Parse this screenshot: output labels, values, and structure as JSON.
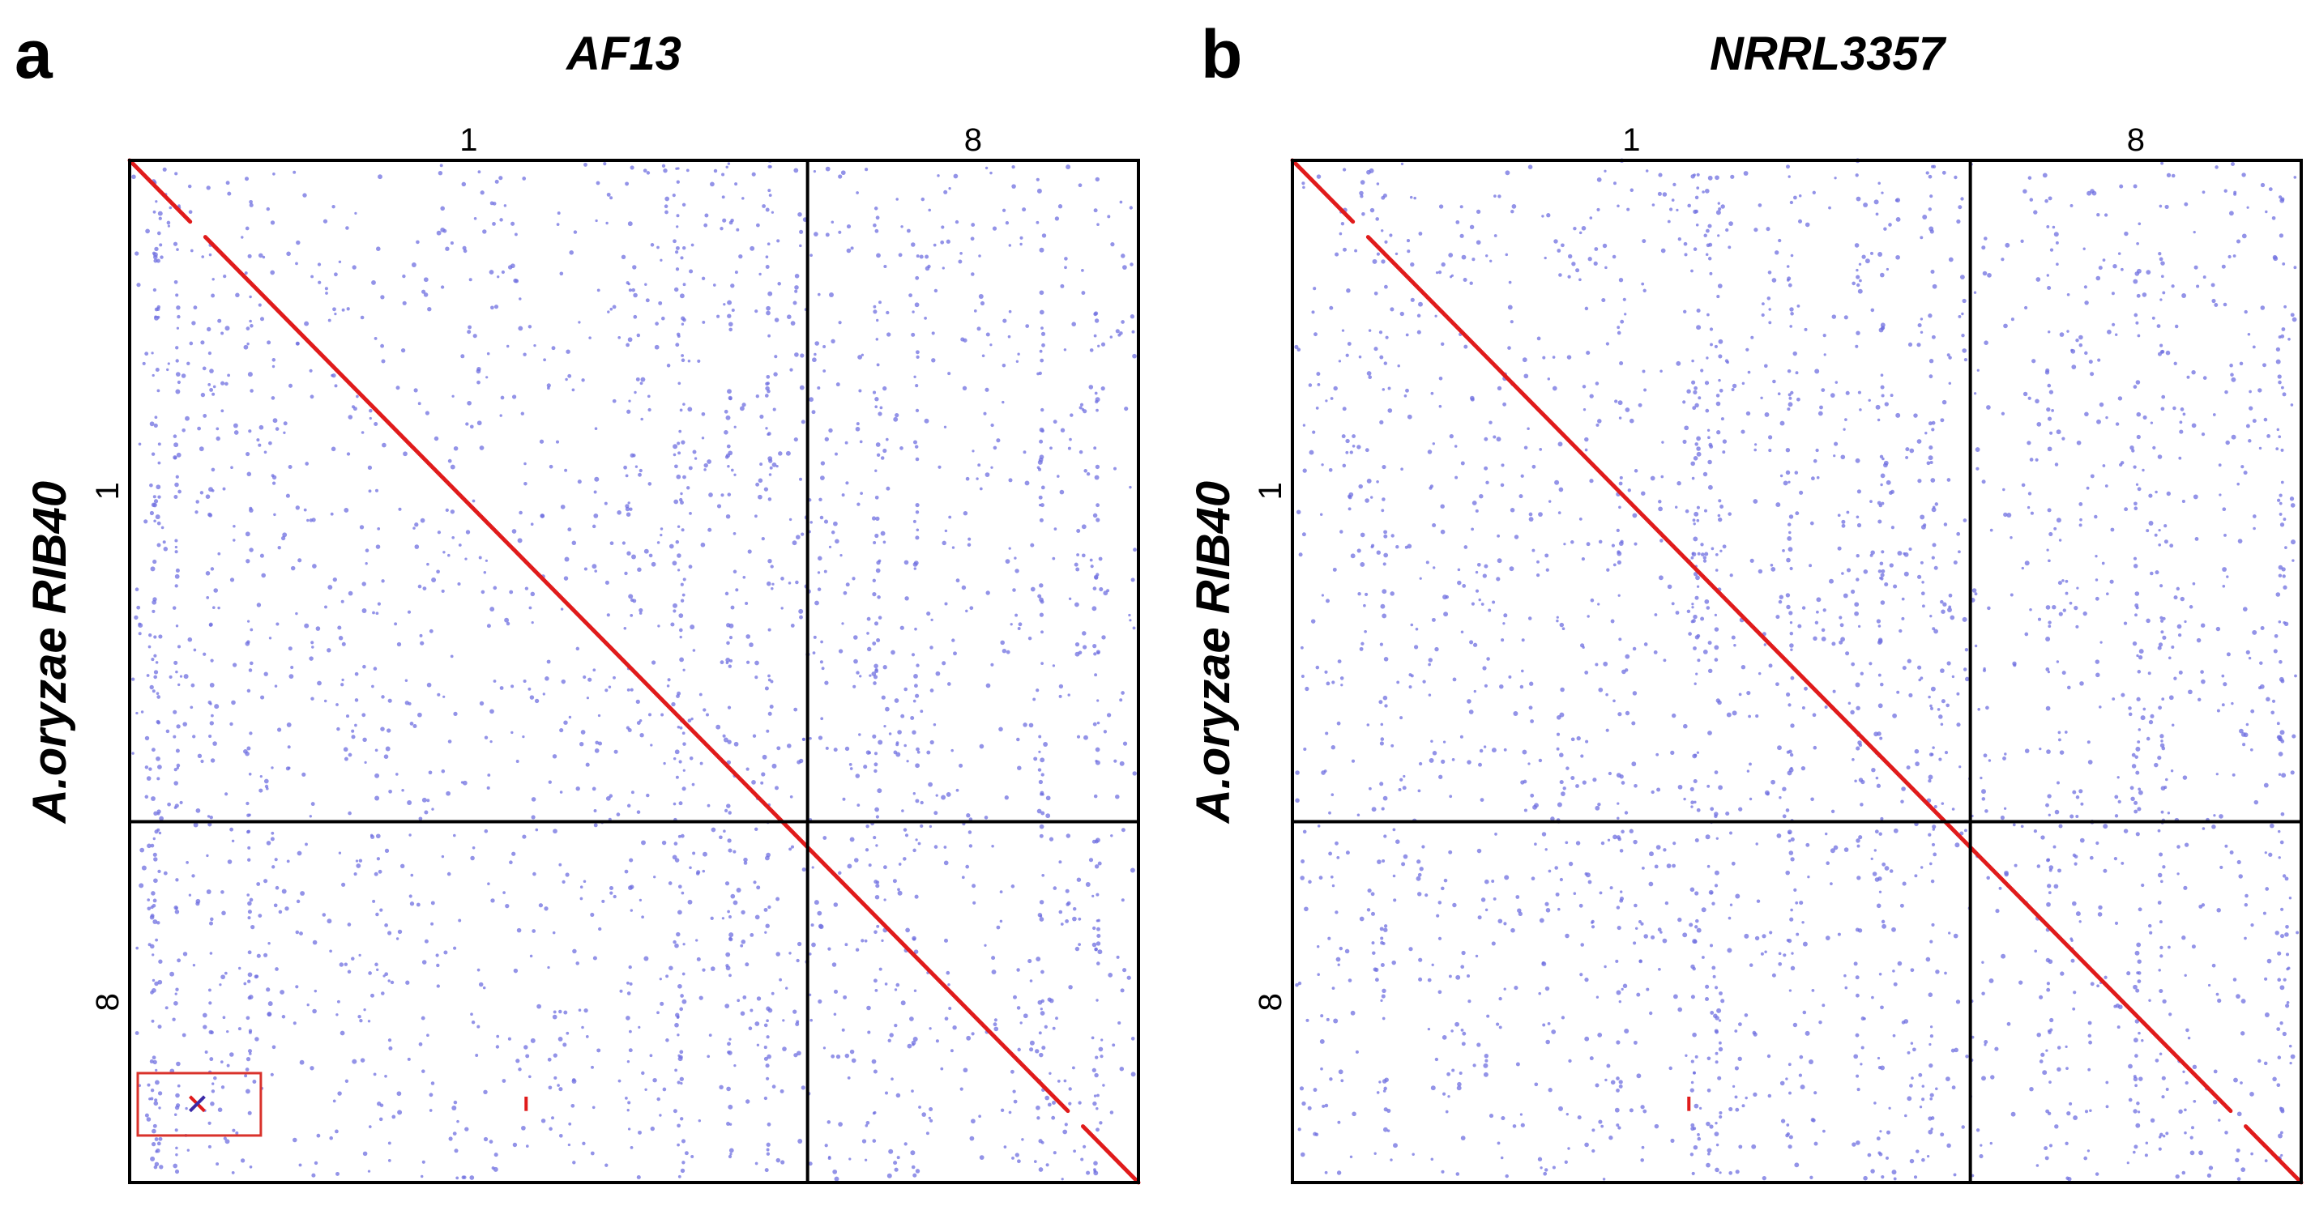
{
  "colors": {
    "frame": "#000000",
    "diagonal": "#e01b1b",
    "background_dots": "#6f6fe0",
    "highlight_box": "#d9322b"
  },
  "panels": [
    {
      "letter": "a",
      "title": "AF13",
      "y_title": "A.oryzae RIB40",
      "x_labels": [
        "1",
        "8"
      ],
      "y_labels": [
        "1",
        "8"
      ],
      "has_highlight_box": true
    },
    {
      "letter": "b",
      "title": "NRRL3357",
      "y_title": "A.oryzae RIB40",
      "x_labels": [
        "1",
        "8"
      ],
      "y_labels": [
        "1",
        "8"
      ],
      "has_highlight_box": false
    }
  ]
}
